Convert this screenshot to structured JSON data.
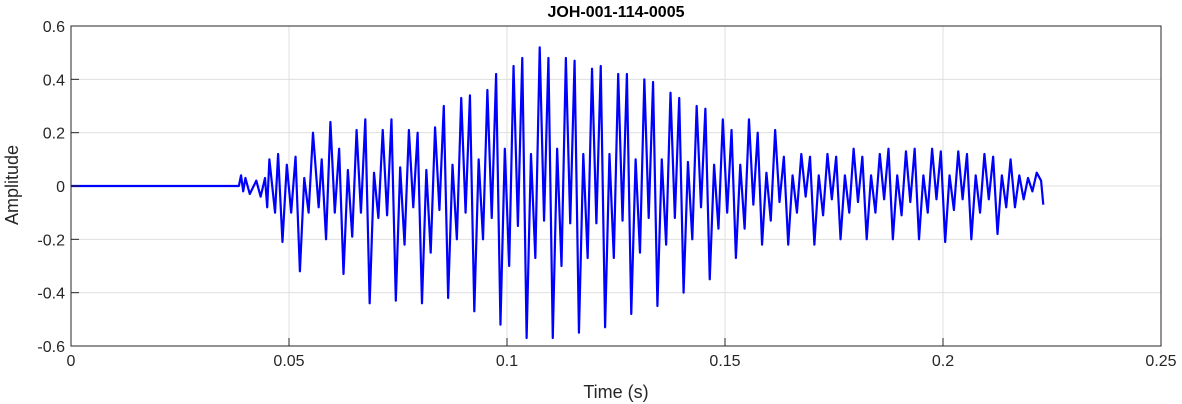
{
  "chart_data": {
    "type": "line",
    "title": "JOH-001-114-0005",
    "xlabel": "Time (s)",
    "ylabel": "Amplitude",
    "xlim": [
      0,
      0.25
    ],
    "ylim": [
      -0.6,
      0.6
    ],
    "grid": true,
    "x_ticks": [
      0,
      0.05,
      0.1,
      0.15,
      0.2,
      0.25
    ],
    "x_tick_labels": [
      "0",
      "0.05",
      "0.1",
      "0.15",
      "0.2",
      "0.25"
    ],
    "y_ticks": [
      -0.6,
      -0.4,
      -0.2,
      0,
      0.2,
      0.4,
      0.6
    ],
    "y_tick_labels": [
      "-0.6",
      "-0.4",
      "-0.2",
      "0",
      "0.2",
      "0.4",
      "0.6"
    ],
    "series": [
      {
        "color": "#0000ff",
        "x_start": 0,
        "x_end": 0.223,
        "peaks": [
          [
            0.0,
            0.0
          ],
          [
            0.0385,
            0.0
          ],
          [
            0.039,
            0.04
          ],
          [
            0.0395,
            -0.02
          ],
          [
            0.04,
            0.03
          ],
          [
            0.041,
            -0.03
          ],
          [
            0.0425,
            0.02
          ],
          [
            0.0435,
            -0.04
          ],
          [
            0.0445,
            0.03
          ],
          [
            0.045,
            -0.08
          ],
          [
            0.0455,
            0.1
          ],
          [
            0.0468,
            -0.1
          ],
          [
            0.0475,
            0.12
          ],
          [
            0.0485,
            -0.21
          ],
          [
            0.0495,
            0.08
          ],
          [
            0.0505,
            -0.1
          ],
          [
            0.0515,
            0.11
          ],
          [
            0.0525,
            -0.32
          ],
          [
            0.0535,
            0.03
          ],
          [
            0.0545,
            -0.1
          ],
          [
            0.0555,
            0.2
          ],
          [
            0.0568,
            -0.08
          ],
          [
            0.0575,
            0.1
          ],
          [
            0.0585,
            -0.2
          ],
          [
            0.0595,
            0.24
          ],
          [
            0.0605,
            -0.1
          ],
          [
            0.0615,
            0.14
          ],
          [
            0.0625,
            -0.33
          ],
          [
            0.0635,
            0.06
          ],
          [
            0.0645,
            -0.19
          ],
          [
            0.0655,
            0.21
          ],
          [
            0.0665,
            -0.1
          ],
          [
            0.0675,
            0.25
          ],
          [
            0.0685,
            -0.44
          ],
          [
            0.0695,
            0.05
          ],
          [
            0.0705,
            -0.12
          ],
          [
            0.0715,
            0.21
          ],
          [
            0.0725,
            -0.11
          ],
          [
            0.0735,
            0.25
          ],
          [
            0.0745,
            -0.43
          ],
          [
            0.0755,
            0.07
          ],
          [
            0.0765,
            -0.22
          ],
          [
            0.0775,
            0.21
          ],
          [
            0.0785,
            -0.08
          ],
          [
            0.0795,
            0.2
          ],
          [
            0.0805,
            -0.44
          ],
          [
            0.0815,
            0.06
          ],
          [
            0.0825,
            -0.25
          ],
          [
            0.0835,
            0.22
          ],
          [
            0.0845,
            -0.09
          ],
          [
            0.0855,
            0.3
          ],
          [
            0.0865,
            -0.42
          ],
          [
            0.0875,
            0.08
          ],
          [
            0.0885,
            -0.2
          ],
          [
            0.0895,
            0.33
          ],
          [
            0.0905,
            -0.1
          ],
          [
            0.0915,
            0.34
          ],
          [
            0.0925,
            -0.47
          ],
          [
            0.0935,
            0.1
          ],
          [
            0.0945,
            -0.2
          ],
          [
            0.0955,
            0.36
          ],
          [
            0.0965,
            -0.12
          ],
          [
            0.0975,
            0.42
          ],
          [
            0.0985,
            -0.52
          ],
          [
            0.0995,
            0.14
          ],
          [
            0.1005,
            -0.3
          ],
          [
            0.1015,
            0.45
          ],
          [
            0.1025,
            -0.15
          ],
          [
            0.1035,
            0.48
          ],
          [
            0.1045,
            -0.57
          ],
          [
            0.1055,
            0.12
          ],
          [
            0.1065,
            -0.27
          ],
          [
            0.1075,
            0.52
          ],
          [
            0.1085,
            -0.13
          ],
          [
            0.1095,
            0.48
          ],
          [
            0.1105,
            -0.57
          ],
          [
            0.1115,
            0.14
          ],
          [
            0.1125,
            -0.3
          ],
          [
            0.1135,
            0.48
          ],
          [
            0.1145,
            -0.14
          ],
          [
            0.1155,
            0.47
          ],
          [
            0.1165,
            -0.55
          ],
          [
            0.1175,
            0.12
          ],
          [
            0.1185,
            -0.27
          ],
          [
            0.1195,
            0.44
          ],
          [
            0.1205,
            -0.14
          ],
          [
            0.1215,
            0.45
          ],
          [
            0.1225,
            -0.53
          ],
          [
            0.1235,
            0.12
          ],
          [
            0.1245,
            -0.27
          ],
          [
            0.1255,
            0.42
          ],
          [
            0.1265,
            -0.13
          ],
          [
            0.1275,
            0.42
          ],
          [
            0.1285,
            -0.48
          ],
          [
            0.1295,
            0.1
          ],
          [
            0.1305,
            -0.25
          ],
          [
            0.1315,
            0.4
          ],
          [
            0.1325,
            -0.12
          ],
          [
            0.1335,
            0.39
          ],
          [
            0.1345,
            -0.45
          ],
          [
            0.1355,
            0.1
          ],
          [
            0.1365,
            -0.22
          ],
          [
            0.1375,
            0.35
          ],
          [
            0.1385,
            -0.12
          ],
          [
            0.1395,
            0.33
          ],
          [
            0.1405,
            -0.4
          ],
          [
            0.1415,
            0.09
          ],
          [
            0.1425,
            -0.2
          ],
          [
            0.1435,
            0.3
          ],
          [
            0.1445,
            -0.08
          ],
          [
            0.1455,
            0.29
          ],
          [
            0.1465,
            -0.35
          ],
          [
            0.1475,
            0.08
          ],
          [
            0.1485,
            -0.16
          ],
          [
            0.1495,
            0.25
          ],
          [
            0.1505,
            -0.1
          ],
          [
            0.1515,
            0.21
          ],
          [
            0.1525,
            -0.27
          ],
          [
            0.1535,
            0.08
          ],
          [
            0.1545,
            -0.16
          ],
          [
            0.1555,
            0.25
          ],
          [
            0.1565,
            -0.07
          ],
          [
            0.1575,
            0.2
          ],
          [
            0.1585,
            -0.22
          ],
          [
            0.1595,
            0.05
          ],
          [
            0.1605,
            -0.13
          ],
          [
            0.1615,
            0.21
          ],
          [
            0.1625,
            -0.06
          ],
          [
            0.1635,
            0.11
          ],
          [
            0.1645,
            -0.22
          ],
          [
            0.1655,
            0.04
          ],
          [
            0.1665,
            -0.1
          ],
          [
            0.1675,
            0.12
          ],
          [
            0.1685,
            -0.04
          ],
          [
            0.1695,
            0.11
          ],
          [
            0.1705,
            -0.22
          ],
          [
            0.1715,
            0.04
          ],
          [
            0.1725,
            -0.11
          ],
          [
            0.1735,
            0.12
          ],
          [
            0.1745,
            -0.05
          ],
          [
            0.1755,
            0.11
          ],
          [
            0.1765,
            -0.2
          ],
          [
            0.1775,
            0.04
          ],
          [
            0.1785,
            -0.1
          ],
          [
            0.1795,
            0.14
          ],
          [
            0.1805,
            -0.06
          ],
          [
            0.1815,
            0.11
          ],
          [
            0.1825,
            -0.2
          ],
          [
            0.1835,
            0.04
          ],
          [
            0.1845,
            -0.1
          ],
          [
            0.1855,
            0.12
          ],
          [
            0.1865,
            -0.05
          ],
          [
            0.1875,
            0.14
          ],
          [
            0.1885,
            -0.2
          ],
          [
            0.1895,
            0.04
          ],
          [
            0.1905,
            -0.11
          ],
          [
            0.1915,
            0.13
          ],
          [
            0.1925,
            -0.06
          ],
          [
            0.1935,
            0.14
          ],
          [
            0.1945,
            -0.2
          ],
          [
            0.1955,
            0.04
          ],
          [
            0.1965,
            -0.1
          ],
          [
            0.1975,
            0.14
          ],
          [
            0.1985,
            -0.05
          ],
          [
            0.1995,
            0.13
          ],
          [
            0.2005,
            -0.21
          ],
          [
            0.2015,
            0.04
          ],
          [
            0.2025,
            -0.09
          ],
          [
            0.2035,
            0.13
          ],
          [
            0.2045,
            -0.05
          ],
          [
            0.2055,
            0.12
          ],
          [
            0.2065,
            -0.2
          ],
          [
            0.2075,
            0.04
          ],
          [
            0.2085,
            -0.1
          ],
          [
            0.2095,
            0.12
          ],
          [
            0.2105,
            -0.05
          ],
          [
            0.2115,
            0.11
          ],
          [
            0.2125,
            -0.18
          ],
          [
            0.2135,
            0.04
          ],
          [
            0.2145,
            -0.08
          ],
          [
            0.2155,
            0.1
          ],
          [
            0.2165,
            -0.08
          ],
          [
            0.2175,
            0.04
          ],
          [
            0.2185,
            -0.05
          ],
          [
            0.2195,
            0.03
          ],
          [
            0.2205,
            -0.02
          ],
          [
            0.2215,
            0.05
          ],
          [
            0.2225,
            0.02
          ],
          [
            0.223,
            -0.07
          ]
        ]
      }
    ]
  }
}
